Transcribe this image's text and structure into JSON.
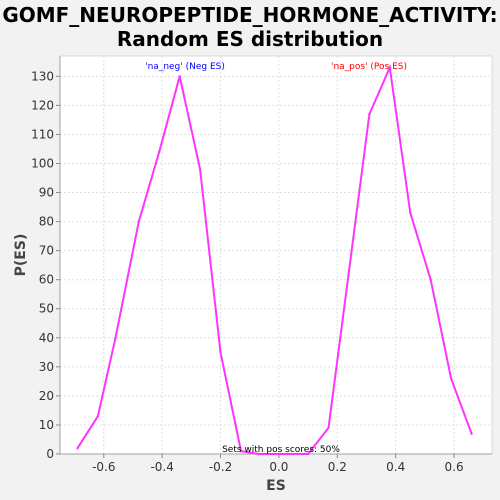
{
  "chart_data": {
    "type": "line",
    "title_line1": "GOMF_NEUROPEPTIDE_HORMONE_ACTIVITY:",
    "title_line2": "Random ES distribution",
    "xlabel": "ES",
    "ylabel": "P(ES)",
    "xlim": [
      -0.75,
      0.73
    ],
    "ylim": [
      0,
      137
    ],
    "xticks": [
      -0.6,
      -0.4,
      -0.2,
      0.0,
      0.2,
      0.4,
      0.6
    ],
    "xtick_labels": [
      "-0.6",
      "-0.4",
      "-0.2",
      "0.0",
      "0.2",
      "0.4",
      "0.6"
    ],
    "yticks": [
      0,
      10,
      20,
      30,
      40,
      50,
      60,
      70,
      80,
      90,
      100,
      110,
      120,
      130
    ],
    "ytick_labels": [
      "0",
      "10",
      "20",
      "30",
      "40",
      "50",
      "60",
      "70",
      "80",
      "90",
      "100",
      "110",
      "120",
      "130"
    ],
    "grid": true,
    "series": [
      {
        "color": "#ff33ff",
        "x": [
          -0.69,
          -0.62,
          -0.56,
          -0.48,
          -0.41,
          -0.34,
          -0.27,
          -0.2,
          -0.13,
          -0.07,
          0.0,
          0.03,
          0.1,
          0.17,
          0.24,
          0.31,
          0.38,
          0.45,
          0.52,
          0.59,
          0.66
        ],
        "y": [
          2,
          13,
          40,
          80,
          104,
          130,
          98,
          35,
          1,
          0,
          0,
          0,
          0,
          9,
          63,
          117,
          133,
          83,
          60,
          26,
          7
        ]
      }
    ],
    "annotations": {
      "neg": {
        "text": "'na_neg' (Neg ES)",
        "color": "#0000ff"
      },
      "pos": {
        "text": "'na_pos' (Pos ES)",
        "color": "#ff0000"
      },
      "pos_scores": {
        "text": "Sets with pos scores: 50%",
        "color": "#000000"
      }
    },
    "colors": {
      "plot_bg": "#ffffff",
      "grid": "#e0e0e0",
      "axis": "#888888",
      "line": "#ff33ff"
    }
  }
}
